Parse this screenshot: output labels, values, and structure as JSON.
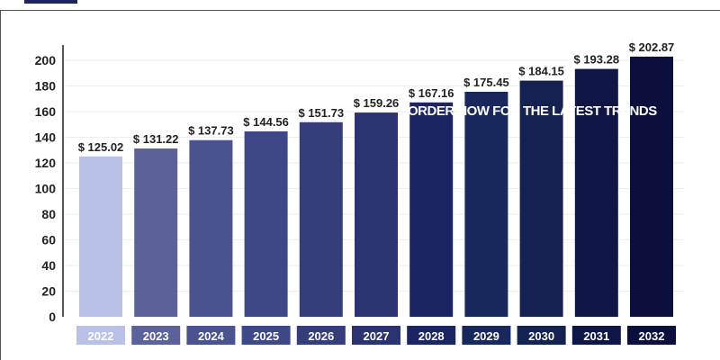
{
  "chart_data": {
    "type": "bar",
    "categories": [
      "2022",
      "2023",
      "2024",
      "2025",
      "2026",
      "2027",
      "2028",
      "2029",
      "2030",
      "2031",
      "2032"
    ],
    "values": [
      125.02,
      131.22,
      137.73,
      144.56,
      151.73,
      159.26,
      167.16,
      175.45,
      184.15,
      193.28,
      202.87
    ],
    "data_labels": [
      "$ 125.02",
      "$ 131.22",
      "$ 137.73",
      "$ 144.56",
      "$ 151.73",
      "$ 159.26",
      "$ 167.16",
      "$ 175.45",
      "$ 184.15",
      "$ 193.28",
      "$ 202.87"
    ],
    "colors": [
      "#b9c1e6",
      "#5b6199",
      "#4a5290",
      "#3f4886",
      "#353e7b",
      "#2b3470",
      "#1b2562",
      "#19285c",
      "#142251",
      "#0f1646",
      "#0a0f3c"
    ],
    "yticks": [
      0,
      20,
      40,
      60,
      80,
      100,
      120,
      140,
      160,
      180,
      200
    ],
    "ylim": [
      0,
      210
    ],
    "grid": true,
    "title": "",
    "xlabel": "",
    "ylabel": ""
  },
  "overlay": {
    "text": "ORDER NOW FOR THE LATEST TRENDS"
  }
}
